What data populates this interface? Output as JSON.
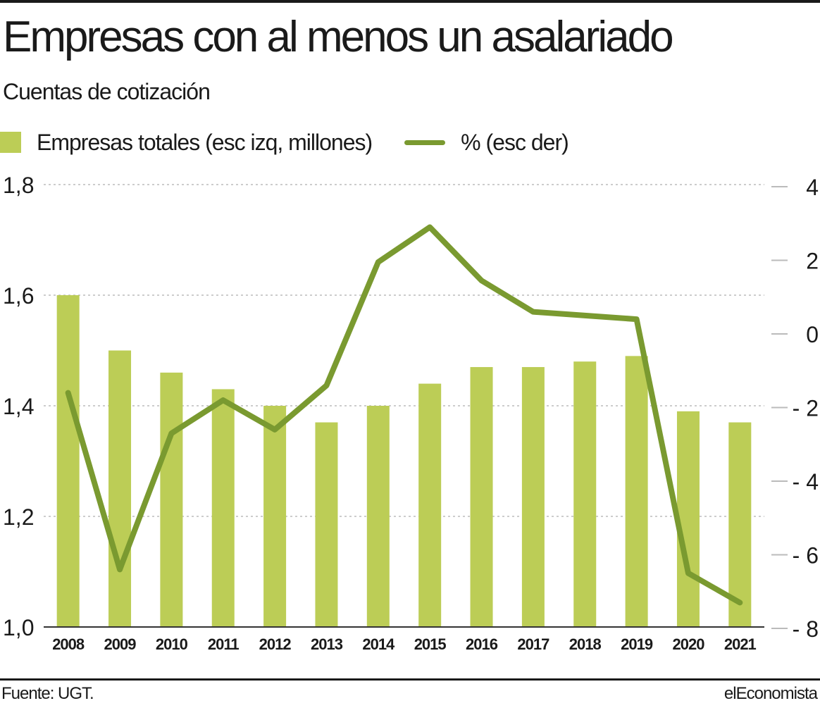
{
  "header": {
    "title": "Empresas con al menos un asalariado",
    "subtitle": "Cuentas de cotización"
  },
  "legend": {
    "bars_label": "Empresas totales (esc izq, millones)",
    "line_label": "% (esc der)"
  },
  "colors": {
    "bar": "#bccd56",
    "line": "#7a9a30",
    "grid": "#bbbbbb",
    "text": "#1a1a1a"
  },
  "chart_data": {
    "type": "bar",
    "categories": [
      "2008",
      "2009",
      "2010",
      "2011",
      "2012",
      "2013",
      "2014",
      "2015",
      "2016",
      "2017",
      "2018",
      "2019",
      "2020",
      "2021"
    ],
    "series": [
      {
        "name": "Empresas totales (esc izq, millones)",
        "type": "bar",
        "axis": "left",
        "values": [
          1.6,
          1.5,
          1.46,
          1.43,
          1.4,
          1.37,
          1.4,
          1.44,
          1.47,
          1.47,
          1.48,
          1.49,
          1.39,
          1.37
        ]
      },
      {
        "name": "% (esc der)",
        "type": "line",
        "axis": "right",
        "values": [
          -1.6,
          -6.4,
          -2.7,
          -1.8,
          -2.6,
          -1.4,
          1.95,
          2.9,
          1.45,
          0.6,
          0.5,
          0.4,
          -6.5,
          -7.3
        ]
      }
    ],
    "y_left": {
      "ylim": [
        1.0,
        1.8
      ],
      "ticks": [
        "1,0",
        "1,2",
        "1,4",
        "1,6",
        "1,8"
      ],
      "tick_values": [
        1.0,
        1.2,
        1.4,
        1.6,
        1.8
      ]
    },
    "y_right": {
      "ylim": [
        -8,
        4
      ],
      "ticks": [
        "- 8",
        "- 6",
        "- 4",
        "- 2",
        "0",
        "2",
        "4"
      ],
      "tick_values": [
        -8,
        -6,
        -4,
        -2,
        0,
        2,
        4
      ]
    },
    "grid": true,
    "legend_position": "top-left"
  },
  "footer": {
    "source": "Fuente: UGT.",
    "brand": "elEconomista"
  }
}
